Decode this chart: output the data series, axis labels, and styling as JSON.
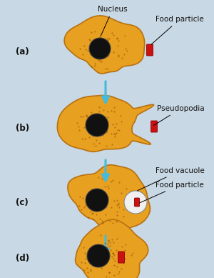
{
  "background_color": "#c8d8e4",
  "amoeba_body_color": "#e8a020",
  "amoeba_edge_color": "#b87010",
  "nucleus_color": "#111111",
  "food_particle_color": "#cc1111",
  "vacuole_fill": "#f0f0f0",
  "arrow_color": "#44bbdd",
  "label_color": "#111111",
  "dot_color": "#7a3a00",
  "figsize": [
    3.0,
    3.89
  ],
  "dpi": 100,
  "labels": [
    "(a)",
    "(b)",
    "(c)",
    "(d)"
  ],
  "annotations": {
    "nucleus": "Nucleus",
    "food_particle_a": "Food particle",
    "pseudopodia": "Pseudopodia",
    "food_vacuole": "Food vacuole",
    "food_particle_c": "Food particle"
  }
}
